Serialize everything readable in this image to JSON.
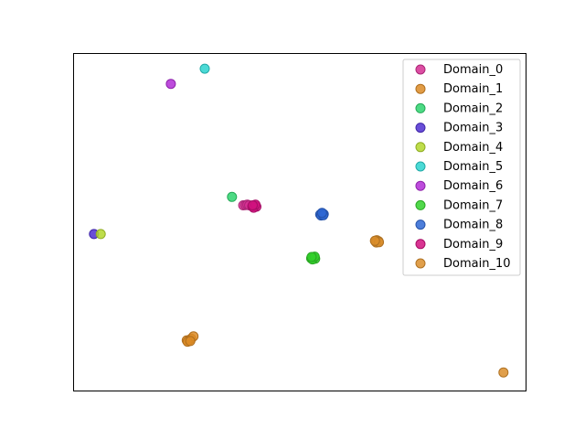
{
  "chart_data": {
    "type": "scatter",
    "title": "",
    "xlabel": "",
    "ylabel": "",
    "xlim": [
      0,
      100
    ],
    "ylim": [
      0,
      100
    ],
    "grid": false,
    "axes_ticks": false,
    "legend_position": "top-right",
    "series": [
      {
        "name": "Domain_0",
        "color": "#d62f93",
        "points": [
          [
            37.5,
            55.0
          ],
          [
            38.0,
            55.1
          ],
          [
            38.4,
            55.2
          ],
          [
            38.8,
            55.0
          ]
        ]
      },
      {
        "name": "Domain_1",
        "color": "#dc8b26",
        "points": [
          [
            25.0,
            15.0
          ],
          [
            25.5,
            15.0
          ],
          [
            26.0,
            15.5
          ],
          [
            26.5,
            16.2
          ],
          [
            25.2,
            14.6
          ],
          [
            25.8,
            14.8
          ]
        ]
      },
      {
        "name": "Domain_2",
        "color": "#2ed36e",
        "points": [
          [
            35.0,
            57.5
          ]
        ]
      },
      {
        "name": "Domain_3",
        "color": "#4f2fd1",
        "points": [
          [
            4.5,
            46.5
          ]
        ]
      },
      {
        "name": "Domain_4",
        "color": "#b3d72c",
        "points": [
          [
            6.0,
            46.5
          ]
        ]
      },
      {
        "name": "Domain_5",
        "color": "#2bd3cf",
        "points": [
          [
            29.0,
            95.5
          ]
        ]
      },
      {
        "name": "Domain_6",
        "color": "#b22dd6",
        "points": [
          [
            21.5,
            91.0
          ]
        ]
      },
      {
        "name": "Domain_7",
        "color": "#33d12c",
        "points": [
          [
            52.5,
            39.3
          ],
          [
            53.0,
            39.6
          ],
          [
            53.4,
            39.2
          ],
          [
            52.8,
            39.0
          ],
          [
            53.3,
            39.8
          ],
          [
            52.6,
            39.7
          ]
        ]
      },
      {
        "name": "Domain_8",
        "color": "#2e67d3",
        "points": [
          [
            54.5,
            52.3
          ],
          [
            54.9,
            52.6
          ],
          [
            55.3,
            52.4
          ],
          [
            54.7,
            52.0
          ],
          [
            55.2,
            52.1
          ],
          [
            54.9,
            52.8
          ]
        ]
      },
      {
        "name": "Domain_9",
        "color": "#d1127f",
        "points": [
          [
            39.5,
            54.7
          ],
          [
            40.0,
            54.9
          ],
          [
            40.4,
            54.6
          ],
          [
            39.8,
            54.3
          ],
          [
            40.2,
            55.2
          ],
          [
            39.6,
            55.0
          ]
        ]
      },
      {
        "name": "Domain_10",
        "color": "#db8e2c",
        "points": [
          [
            66.7,
            44.3
          ],
          [
            67.0,
            44.7
          ],
          [
            67.4,
            44.4
          ],
          [
            66.9,
            44.0
          ],
          [
            67.5,
            44.1
          ],
          [
            66.6,
            44.5
          ],
          [
            95.0,
            5.5
          ]
        ]
      }
    ]
  }
}
